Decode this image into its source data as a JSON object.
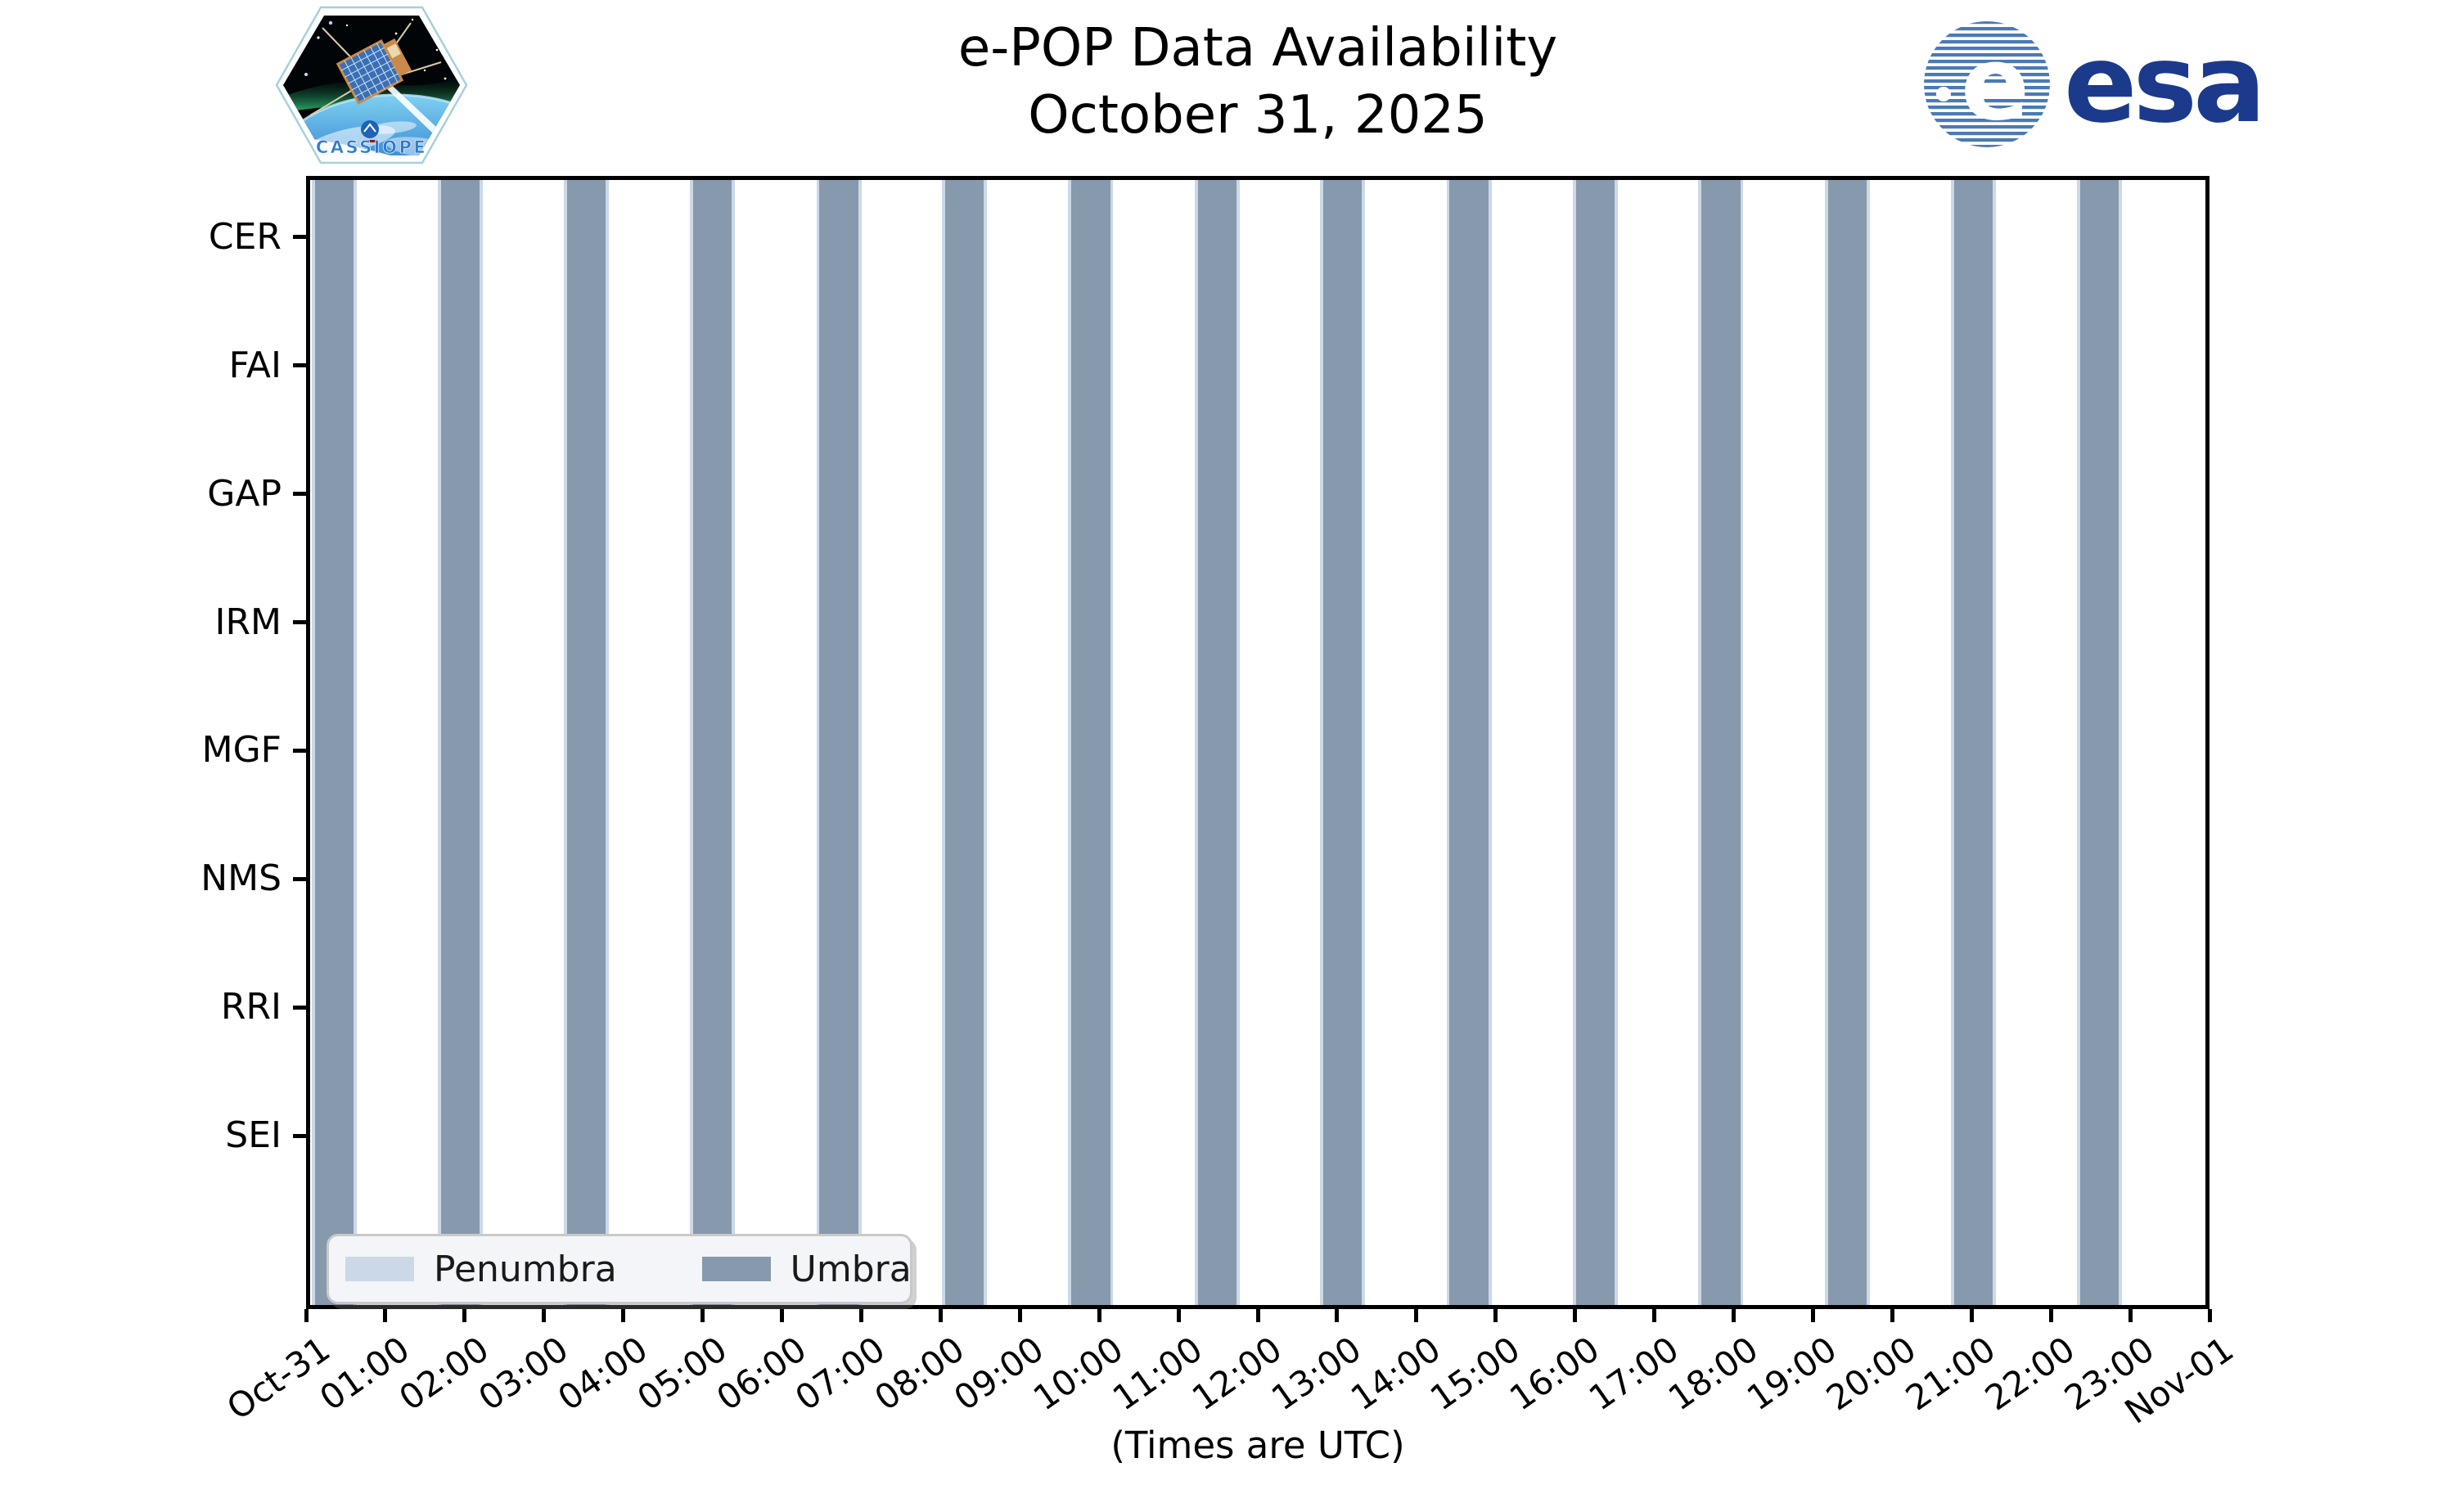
{
  "header": {
    "title_line1": "e-POP Data Availability",
    "title_line2": "October 31, 2025",
    "cassiope_patch_label": "CASSIOPE",
    "esa_logo_text": "esa"
  },
  "chart_data": {
    "type": "timeline-bars",
    "title": "e-POP Data Availability",
    "subtitle": "October 31, 2025",
    "xlabel": "(Times are UTC)",
    "x_axis": {
      "hours_range": [
        0,
        24
      ],
      "tick_labels": [
        "Oct-31",
        "01:00",
        "02:00",
        "03:00",
        "04:00",
        "05:00",
        "06:00",
        "07:00",
        "08:00",
        "09:00",
        "10:00",
        "11:00",
        "12:00",
        "13:00",
        "14:00",
        "15:00",
        "16:00",
        "17:00",
        "18:00",
        "19:00",
        "20:00",
        "21:00",
        "22:00",
        "23:00",
        "Nov-01"
      ]
    },
    "instruments": [
      "CER",
      "FAI",
      "GAP",
      "IRM",
      "MGF",
      "NMS",
      "RRI",
      "SEI"
    ],
    "legend": {
      "items": [
        {
          "label": "Penumbra",
          "color": "#cbd8e8"
        },
        {
          "label": "Umbra",
          "color": "#8799ac"
        }
      ]
    },
    "umbra_intervals_hours": [
      [
        0.06,
        0.55
      ],
      [
        1.66,
        2.15
      ],
      [
        3.25,
        3.74
      ],
      [
        4.85,
        5.34
      ],
      [
        6.45,
        6.94
      ],
      [
        8.04,
        8.53
      ],
      [
        9.64,
        10.13
      ],
      [
        11.24,
        11.73
      ],
      [
        12.83,
        13.32
      ],
      [
        14.43,
        14.92
      ],
      [
        16.03,
        16.52
      ],
      [
        17.62,
        18.11
      ],
      [
        19.22,
        19.71
      ],
      [
        20.82,
        21.31
      ],
      [
        22.41,
        22.9
      ]
    ],
    "penumbra_pad_hours": 0.04,
    "colors": {
      "umbra": "#8799ac",
      "penumbra": "#cbd8e8",
      "axis": "#000000"
    }
  }
}
